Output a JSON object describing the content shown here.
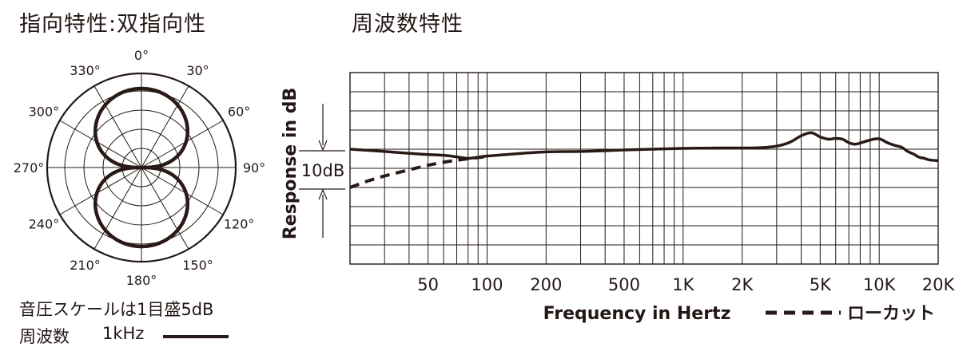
{
  "polar": {
    "title": "指向特性:双指向性",
    "angle_labels": [
      "0°",
      "30°",
      "60°",
      "90°",
      "120°",
      "150°",
      "180°",
      "210°",
      "240°",
      "270°",
      "300°",
      "330°"
    ],
    "scale_note": "音圧スケールは1目盛5dB",
    "freq_label": "周波数",
    "freq_value": "1kHz"
  },
  "response": {
    "title": "周波数特性",
    "scale_label": "10dB",
    "lowcut_label": "ローカット"
  },
  "chart_data": [
    {
      "type": "polar",
      "pattern": "figure-8",
      "angles_deg": [
        0,
        30,
        60,
        90,
        120,
        150,
        180,
        210,
        240,
        270,
        300,
        330
      ],
      "frequency": "1kHz",
      "grid_step_db": 5
    },
    {
      "type": "line",
      "xlabel": "Frequency in Hertz",
      "ylabel": "Response in dB",
      "x_scale": "log",
      "xlim": [
        20,
        20000
      ],
      "x_ticks": [
        50,
        100,
        200,
        500,
        1000,
        2000,
        5000,
        10000,
        20000
      ],
      "x_tick_labels": [
        "50",
        "100",
        "200",
        "500",
        "1K",
        "2K",
        "5K",
        "10K",
        "20K"
      ],
      "ylim_db": [
        -30,
        20
      ],
      "y_grid_step_db": 5,
      "series": [
        {
          "style": "solid",
          "x": [
            20,
            30,
            40,
            50,
            60,
            70,
            80,
            90,
            100,
            150,
            200,
            300,
            400,
            500,
            700,
            1000,
            1500,
            2000,
            2500,
            3000,
            3500,
            4000,
            4500,
            5000,
            5500,
            6000,
            6500,
            7000,
            7500,
            8000,
            9000,
            10000,
            11000,
            12000,
            13000,
            14000,
            15000,
            16000,
            17000,
            18000,
            20000
          ],
          "y": [
            0,
            -0.6,
            -1.1,
            -1.4,
            -1.6,
            -2.0,
            -2.4,
            -2.1,
            -1.8,
            -1.1,
            -0.7,
            -0.6,
            -0.4,
            -0.2,
            0,
            0.2,
            0.3,
            0.3,
            0.4,
            0.8,
            1.8,
            3.5,
            4.3,
            3.2,
            2.6,
            2.8,
            2.6,
            1.7,
            1.3,
            1.6,
            2.4,
            2.7,
            1.7,
            1.0,
            0.5,
            -0.6,
            -1.3,
            -2.1,
            -2.4,
            -2.8,
            -3.0
          ]
        },
        {
          "name": "ローカット",
          "style": "dashed",
          "x": [
            20,
            25,
            30,
            40,
            50,
            60,
            70,
            80,
            90,
            100
          ],
          "y": [
            -10,
            -8.2,
            -7.0,
            -5.4,
            -4.2,
            -3.4,
            -2.9,
            -2.5,
            -2.2,
            -1.9
          ]
        }
      ]
    }
  ]
}
